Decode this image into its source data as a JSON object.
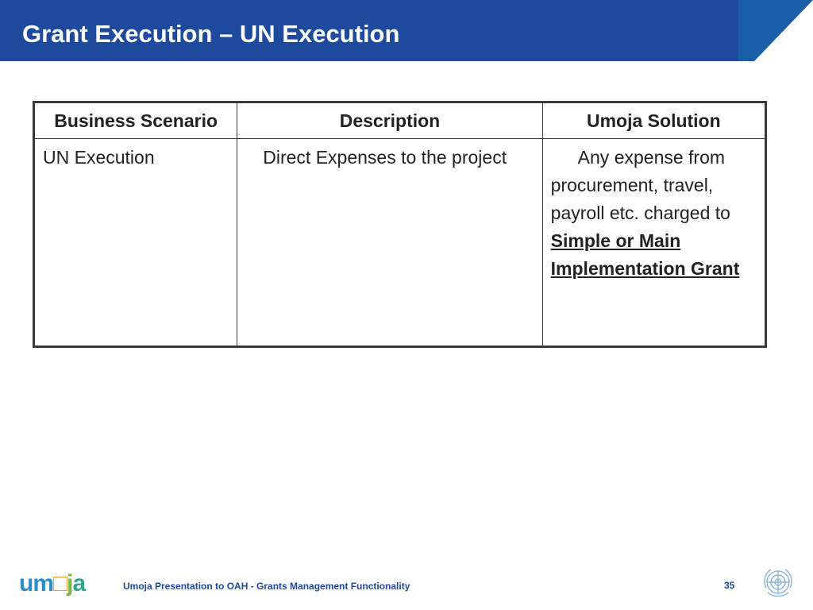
{
  "slide": {
    "title": "Grant Execution – UN Execution"
  },
  "table": {
    "headers": [
      "Business Scenario",
      "Description",
      "Umoja Solution"
    ],
    "row": {
      "scenario": "UN Execution",
      "description": "Direct Expenses to the project",
      "solution_prefix": "Any expense from procurement, travel, payroll etc. charged to",
      "solution_emphasis": "Simple or Main Implementation Grant"
    }
  },
  "footer": {
    "logo_text": "umoja",
    "presentation": "Umoja Presentation to OAH - Grants Management Functionality",
    "page_number": "35"
  },
  "colors": {
    "header_band": "#1d4a9c",
    "footer_text": "#1d4a9c"
  }
}
